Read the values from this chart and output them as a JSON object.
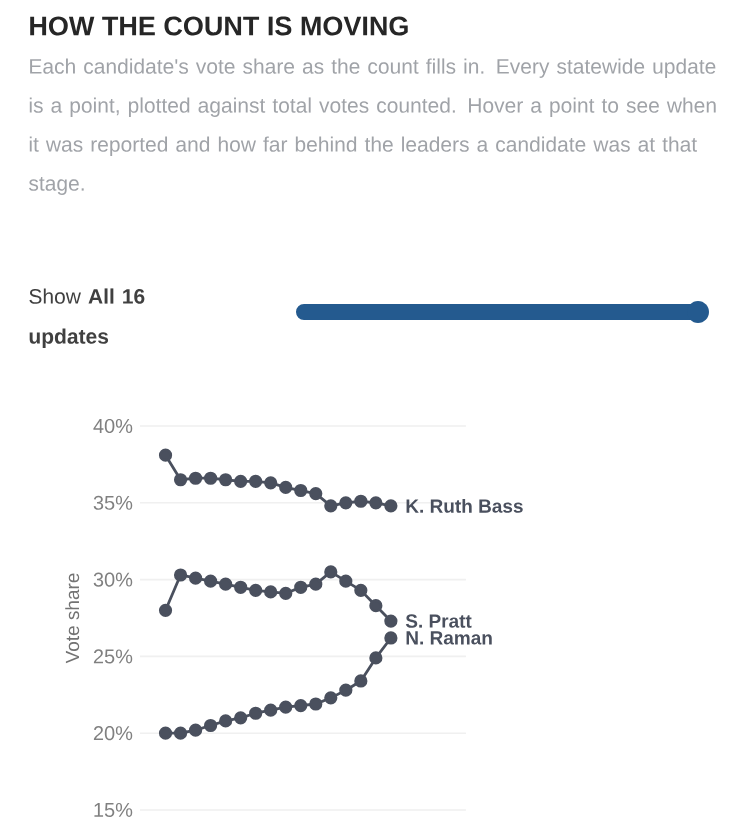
{
  "chart_data": {
    "type": "line",
    "title": "HOW THE COUNT IS MOVING",
    "subtitle": "Each candidate's vote share as the count fills in. Every statewide update is a point, plotted against total votes counted. Hover a point to see when it was reported and how far behind the leaders a candidate was at that stage.",
    "annotations": [
      "Show **All 16 updates**"
    ],
    "ylabel": "Vote share",
    "categories": [
      null,
      null,
      null,
      null,
      null,
      null,
      null,
      null,
      null,
      null,
      null,
      null,
      null,
      null,
      null,
      null
    ],
    "series": [
      {
        "name": "K. Ruth Bass",
        "color": "#4a505e",
        "values": [
          38.1,
          36.5,
          36.6,
          36.6,
          36.5,
          36.4,
          36.4,
          36.3,
          36.0,
          35.8,
          35.6,
          34.8,
          35.0,
          35.1,
          35.0,
          34.8
        ]
      },
      {
        "name": "S. Pratt",
        "color": "#4a505e",
        "values": [
          28.0,
          30.3,
          30.1,
          29.9,
          29.7,
          29.5,
          29.3,
          29.2,
          29.1,
          29.5,
          29.7,
          30.5,
          29.9,
          29.3,
          28.3,
          27.3
        ]
      },
      {
        "name": "N. Raman",
        "color": "#4a505e",
        "values": [
          20.0,
          20.0,
          20.2,
          20.5,
          20.8,
          21.0,
          21.3,
          21.5,
          21.7,
          21.8,
          21.9,
          22.3,
          22.8,
          23.4,
          24.9,
          26.2
        ]
      }
    ],
    "ylim": [
      15,
      40
    ],
    "yticks": [
      {
        "value": 15,
        "label": "15%"
      },
      {
        "value": 20,
        "label": "20%"
      },
      {
        "value": 25,
        "label": "25%"
      },
      {
        "value": 30,
        "label": "30%"
      },
      {
        "value": 35,
        "label": "35%"
      },
      {
        "value": 40,
        "label": "40%"
      }
    ],
    "grid": "y",
    "legend": false,
    "marker": "circle",
    "line_style": "solid"
  }
}
